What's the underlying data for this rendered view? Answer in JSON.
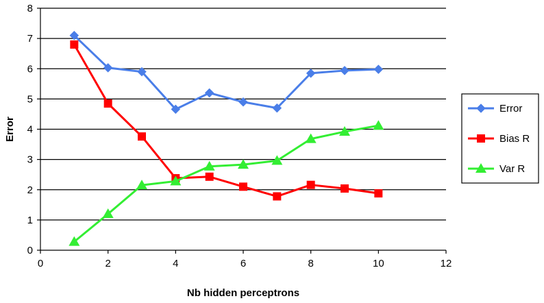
{
  "chart_data": {
    "type": "line",
    "xlabel": "Nb hidden perceptrons",
    "ylabel": "Error",
    "xlim": [
      0,
      12
    ],
    "ylim": [
      0,
      8
    ],
    "xticks": [
      0,
      2,
      4,
      6,
      8,
      10,
      12
    ],
    "yticks": [
      0,
      1,
      2,
      3,
      4,
      5,
      6,
      7,
      8
    ],
    "grid": "horizontal",
    "legend_position": "right",
    "series": [
      {
        "name": "Error",
        "color": "#4A7EE8",
        "marker": "diamond",
        "x": [
          1,
          2,
          3,
          4,
          5,
          6,
          7,
          8,
          9,
          10
        ],
        "y": [
          7.1,
          6.03,
          5.9,
          4.66,
          5.2,
          4.9,
          4.7,
          5.85,
          5.94,
          5.98
        ]
      },
      {
        "name": "Bias R",
        "color": "#FF0000",
        "marker": "square",
        "x": [
          1,
          2,
          3,
          4,
          5,
          6,
          7,
          8,
          9,
          10
        ],
        "y": [
          6.8,
          4.85,
          3.76,
          2.38,
          2.43,
          2.1,
          1.78,
          2.16,
          2.04,
          1.88
        ]
      },
      {
        "name": "Var R",
        "color": "#33EE33",
        "marker": "triangle",
        "x": [
          1,
          2,
          3,
          4,
          5,
          6,
          7,
          8,
          9,
          10
        ],
        "y": [
          0.28,
          1.2,
          2.15,
          2.28,
          2.77,
          2.83,
          2.96,
          3.68,
          3.92,
          4.12
        ]
      }
    ]
  }
}
